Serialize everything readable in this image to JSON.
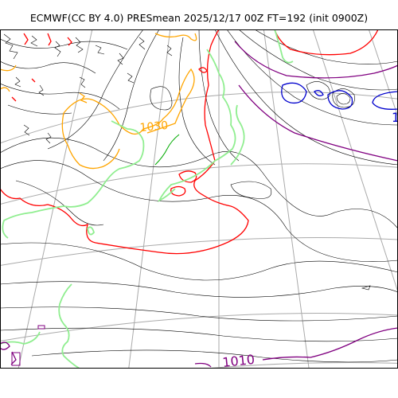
{
  "title": "ECMWF(CC BY 4.0) PRESmean 2025/12/17 00Z FT=192 (init 0900Z)",
  "contour_labels": {
    "purple": "1010",
    "orange": "1030",
    "blue_edge": "1"
  },
  "colors": {
    "background": "#ffffff",
    "isobar": "#000000",
    "graticule": "#aaaaaa",
    "coastline": "#90ee90",
    "contour_1010": "#800080",
    "contour_1020": "#ff0000",
    "contour_1030": "#ffa500",
    "contour_low": "#0000cd",
    "green_contour": "#00aa00"
  }
}
